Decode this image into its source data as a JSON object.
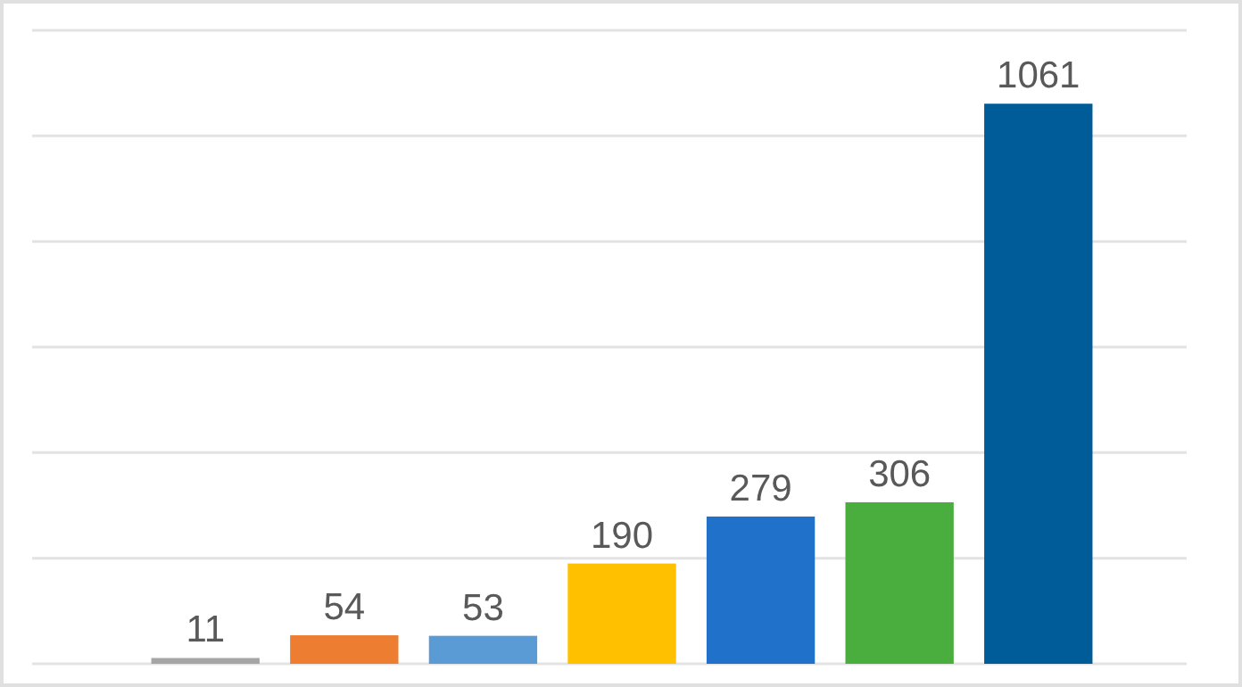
{
  "chart_data": {
    "type": "bar",
    "categories": [
      null,
      null,
      null,
      null,
      null,
      null,
      null
    ],
    "values": [
      11,
      54,
      53,
      190,
      279,
      306,
      1061
    ],
    "colors": [
      "#a5a5a5",
      "#ed7d31",
      "#5b9bd5",
      "#ffc000",
      "#1f71c9",
      "#4aae3e",
      "#005c98"
    ],
    "ylim": [
      0,
      1200
    ],
    "yticks": [
      {
        "value": 0,
        "label": null
      },
      {
        "value": 200,
        "label": null
      },
      {
        "value": 400,
        "label": null
      },
      {
        "value": 600,
        "label": null
      },
      {
        "value": 800,
        "label": null
      },
      {
        "value": 1000,
        "label": null
      },
      {
        "value": 1200,
        "label": null
      }
    ],
    "grid": "y",
    "data_labels": true
  }
}
